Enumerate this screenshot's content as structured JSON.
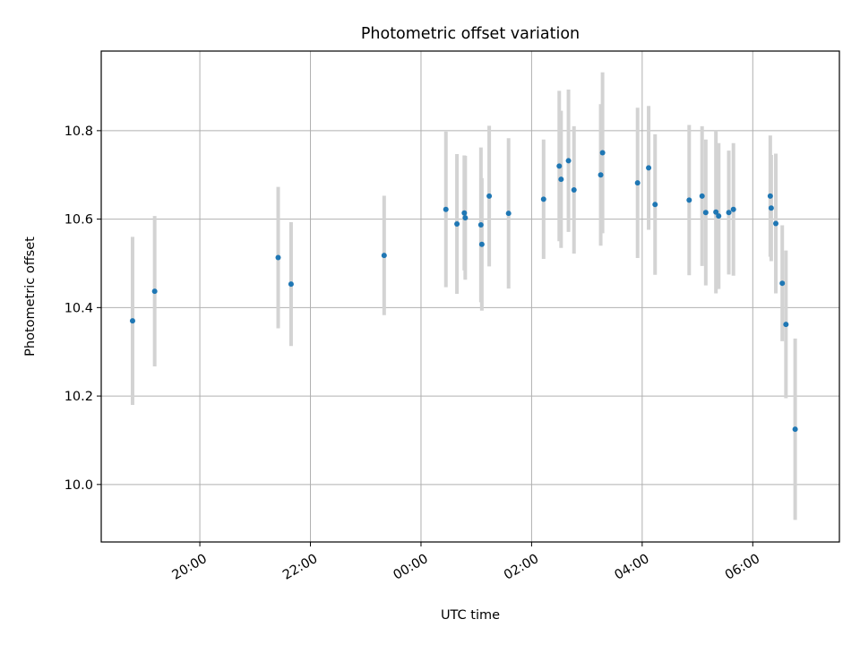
{
  "chart_data": {
    "type": "scatter",
    "title": "Photometric offset variation",
    "xlabel": "UTC time",
    "ylabel": "Photometric offset",
    "x_axis": "time",
    "x_ticks": [
      "20:00",
      "22:00",
      "00:00",
      "02:00",
      "04:00",
      "06:00"
    ],
    "x_range": [
      "18:13",
      "07:34"
    ],
    "ylim": [
      9.87,
      10.98
    ],
    "y_ticks": [
      10.0,
      10.2,
      10.4,
      10.6,
      10.8
    ],
    "y_tick_labels": [
      "10.0",
      "10.2",
      "10.4",
      "10.6",
      "10.8"
    ],
    "grid": true,
    "marker_color": "#1f77b4",
    "errorbar_color": "#d3d3d3",
    "points": [
      {
        "x": "18:47",
        "y": 10.37,
        "err": 0.19
      },
      {
        "x": "19:11",
        "y": 10.437,
        "err": 0.17
      },
      {
        "x": "21:25",
        "y": 10.513,
        "err": 0.16
      },
      {
        "x": "21:39",
        "y": 10.453,
        "err": 0.14
      },
      {
        "x": "23:20",
        "y": 10.518,
        "err": 0.135
      },
      {
        "x": "00:27",
        "y": 10.622,
        "err": 0.176
      },
      {
        "x": "00:39",
        "y": 10.589,
        "err": 0.158
      },
      {
        "x": "00:47",
        "y": 10.614,
        "err": 0.13
      },
      {
        "x": "00:48",
        "y": 10.603,
        "err": 0.14
      },
      {
        "x": "01:05",
        "y": 10.587,
        "err": 0.175
      },
      {
        "x": "01:06",
        "y": 10.543,
        "err": 0.15
      },
      {
        "x": "01:14",
        "y": 10.652,
        "err": 0.159
      },
      {
        "x": "01:35",
        "y": 10.613,
        "err": 0.17
      },
      {
        "x": "02:13",
        "y": 10.645,
        "err": 0.135
      },
      {
        "x": "02:30",
        "y": 10.72,
        "err": 0.17
      },
      {
        "x": "02:32",
        "y": 10.69,
        "err": 0.155
      },
      {
        "x": "02:40",
        "y": 10.732,
        "err": 0.161
      },
      {
        "x": "02:46",
        "y": 10.666,
        "err": 0.144
      },
      {
        "x": "03:15",
        "y": 10.7,
        "err": 0.16
      },
      {
        "x": "03:17",
        "y": 10.75,
        "err": 0.182
      },
      {
        "x": "03:55",
        "y": 10.682,
        "err": 0.17
      },
      {
        "x": "04:07",
        "y": 10.716,
        "err": 0.14
      },
      {
        "x": "04:14",
        "y": 10.633,
        "err": 0.159
      },
      {
        "x": "04:51",
        "y": 10.643,
        "err": 0.17
      },
      {
        "x": "05:05",
        "y": 10.652,
        "err": 0.158
      },
      {
        "x": "05:09",
        "y": 10.615,
        "err": 0.165
      },
      {
        "x": "05:20",
        "y": 10.616,
        "err": 0.184
      },
      {
        "x": "05:23",
        "y": 10.607,
        "err": 0.165
      },
      {
        "x": "05:34",
        "y": 10.615,
        "err": 0.14
      },
      {
        "x": "05:39",
        "y": 10.622,
        "err": 0.15
      },
      {
        "x": "06:19",
        "y": 10.652,
        "err": 0.137
      },
      {
        "x": "06:20",
        "y": 10.625,
        "err": 0.12
      },
      {
        "x": "06:25",
        "y": 10.59,
        "err": 0.158
      },
      {
        "x": "06:32",
        "y": 10.455,
        "err": 0.131
      },
      {
        "x": "06:36",
        "y": 10.362,
        "err": 0.167
      },
      {
        "x": "06:46",
        "y": 10.125,
        "err": 0.205
      }
    ]
  }
}
